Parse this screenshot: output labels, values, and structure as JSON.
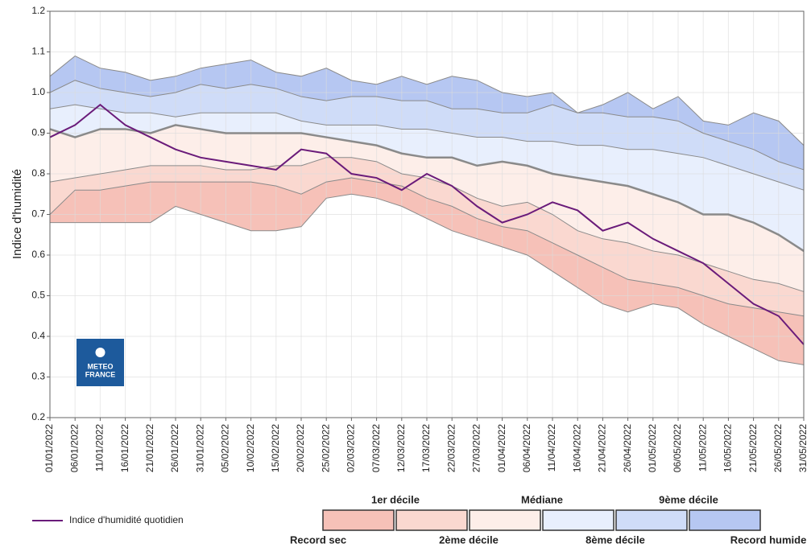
{
  "chart_data": {
    "type": "band",
    "y_label": "Indice d'humidité",
    "logo_text": [
      "METEO",
      "FRANCE"
    ],
    "x": [
      "01/01/2022",
      "06/01/2022",
      "11/01/2022",
      "16/01/2022",
      "21/01/2022",
      "26/01/2022",
      "31/01/2022",
      "05/02/2022",
      "10/02/2022",
      "15/02/2022",
      "20/02/2022",
      "25/02/2022",
      "02/03/2022",
      "07/03/2022",
      "12/03/2022",
      "17/03/2022",
      "22/03/2022",
      "27/03/2022",
      "01/04/2022",
      "06/04/2022",
      "11/04/2022",
      "16/04/2022",
      "21/04/2022",
      "26/04/2022",
      "01/05/2022",
      "06/05/2022",
      "11/05/2022",
      "16/05/2022",
      "21/05/2022",
      "26/05/2022",
      "31/05/2022"
    ],
    "ylim": [
      0.2,
      1.2
    ],
    "yticks": [
      0.2,
      0.3,
      0.4,
      0.5,
      0.6,
      0.7,
      0.8,
      0.9,
      {
        "value": 1,
        "label": "1.0"
      },
      1.1,
      1.2
    ],
    "grid": true,
    "band_colors": [
      "#f6c1b8",
      "#fad8d0",
      "#fdeee9",
      "#e8effd",
      "#cfdcf8",
      "#b6c7f2"
    ],
    "band_line_color": "#8a8a8a",
    "series": [
      {
        "name": "Record sec",
        "values": [
          0.68,
          0.68,
          0.68,
          0.68,
          0.68,
          0.72,
          0.7,
          0.68,
          0.66,
          0.66,
          0.67,
          0.74,
          0.75,
          0.74,
          0.72,
          0.69,
          0.66,
          0.64,
          0.62,
          0.6,
          0.56,
          0.52,
          0.48,
          0.46,
          0.48,
          0.47,
          0.43,
          0.4,
          0.37,
          0.34,
          0.33
        ]
      },
      {
        "name": "1er décile",
        "values": [
          0.7,
          0.76,
          0.76,
          0.77,
          0.78,
          0.78,
          0.78,
          0.78,
          0.78,
          0.77,
          0.75,
          0.78,
          0.79,
          0.78,
          0.77,
          0.74,
          0.72,
          0.69,
          0.67,
          0.66,
          0.63,
          0.6,
          0.57,
          0.54,
          0.53,
          0.52,
          0.5,
          0.48,
          0.47,
          0.46,
          0.45
        ]
      },
      {
        "name": "2ème décile",
        "values": [
          0.78,
          0.79,
          0.8,
          0.81,
          0.82,
          0.82,
          0.82,
          0.81,
          0.81,
          0.82,
          0.82,
          0.84,
          0.84,
          0.83,
          0.8,
          0.79,
          0.77,
          0.74,
          0.72,
          0.73,
          0.7,
          0.66,
          0.64,
          0.63,
          0.61,
          0.6,
          0.58,
          0.56,
          0.54,
          0.53,
          0.51
        ]
      },
      {
        "name": "Médiane",
        "values": [
          0.91,
          0.89,
          0.91,
          0.91,
          0.9,
          0.92,
          0.91,
          0.9,
          0.9,
          0.9,
          0.9,
          0.89,
          0.88,
          0.87,
          0.85,
          0.84,
          0.84,
          0.82,
          0.83,
          0.82,
          0.8,
          0.79,
          0.78,
          0.77,
          0.75,
          0.73,
          0.7,
          0.7,
          0.68,
          0.65,
          0.61
        ]
      },
      {
        "name": "8ème décile",
        "values": [
          0.96,
          0.97,
          0.96,
          0.95,
          0.95,
          0.94,
          0.95,
          0.95,
          0.95,
          0.95,
          0.93,
          0.92,
          0.92,
          0.92,
          0.91,
          0.91,
          0.9,
          0.89,
          0.89,
          0.88,
          0.88,
          0.87,
          0.87,
          0.86,
          0.86,
          0.85,
          0.84,
          0.82,
          0.8,
          0.78,
          0.76
        ]
      },
      {
        "name": "9ème décile",
        "values": [
          1.0,
          1.03,
          1.01,
          1.0,
          0.99,
          1.0,
          1.02,
          1.01,
          1.02,
          1.01,
          0.99,
          0.98,
          0.99,
          0.99,
          0.98,
          0.98,
          0.96,
          0.96,
          0.95,
          0.95,
          0.97,
          0.95,
          0.95,
          0.94,
          0.94,
          0.93,
          0.9,
          0.88,
          0.86,
          0.83,
          0.81
        ]
      },
      {
        "name": "Record humide",
        "values": [
          1.04,
          1.09,
          1.06,
          1.05,
          1.03,
          1.04,
          1.06,
          1.07,
          1.08,
          1.05,
          1.04,
          1.06,
          1.03,
          1.02,
          1.04,
          1.02,
          1.04,
          1.03,
          1.0,
          0.99,
          1.0,
          0.95,
          0.97,
          1.0,
          0.96,
          0.99,
          0.93,
          0.92,
          0.95,
          0.93,
          0.87
        ]
      },
      {
        "name": "Indice d'humidité quotidien",
        "color": "#6a1b7a",
        "values": [
          0.89,
          0.92,
          0.97,
          0.92,
          0.89,
          0.86,
          0.84,
          0.83,
          0.82,
          0.81,
          0.86,
          0.85,
          0.8,
          0.79,
          0.76,
          0.8,
          0.77,
          0.72,
          0.68,
          0.7,
          0.73,
          0.71,
          0.66,
          0.68,
          0.64,
          0.61,
          0.58,
          0.53,
          0.48,
          0.45,
          0.38
        ]
      }
    ]
  }
}
